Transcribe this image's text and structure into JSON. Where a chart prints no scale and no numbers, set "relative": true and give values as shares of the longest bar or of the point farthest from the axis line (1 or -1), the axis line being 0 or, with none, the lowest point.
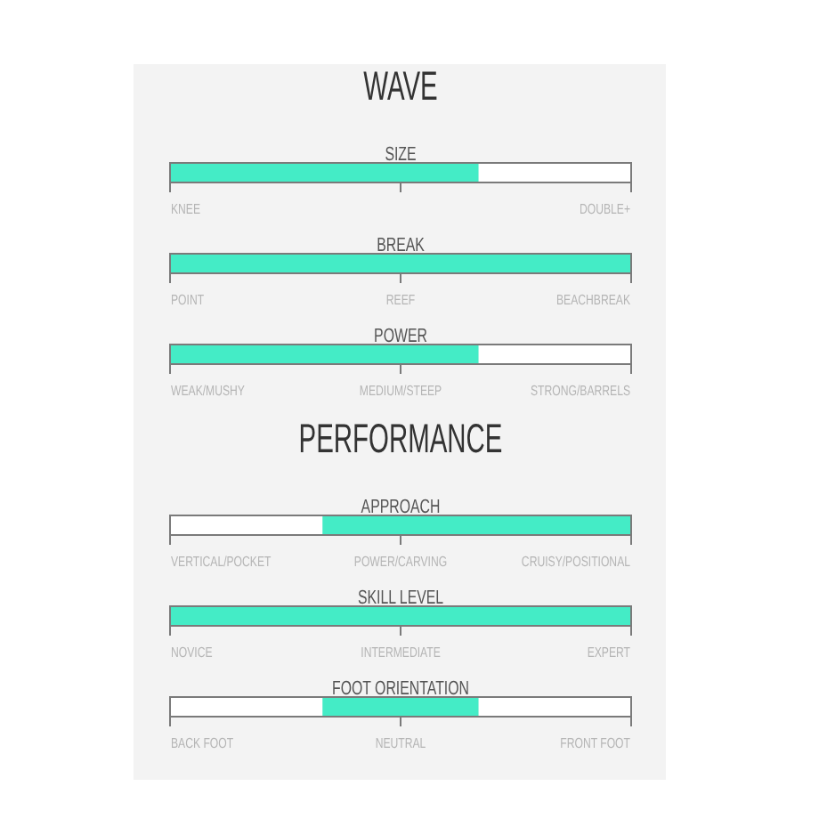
{
  "chart_data": [
    {
      "type": "other",
      "title": "WAVE"
    },
    {
      "type": "bar",
      "orientation": "horizontal",
      "relative": true,
      "stacked": true,
      "title": "SIZE",
      "categories": [
        null
      ],
      "series": [
        {
          "color": "#44ecc6",
          "values": [
            0.67
          ]
        },
        {
          "color": "#ffffff",
          "values": [
            0.33
          ]
        }
      ],
      "annotations": [
        "KNEE",
        "DOUBLE+"
      ]
    },
    {
      "type": "bar",
      "orientation": "horizontal",
      "relative": true,
      "stacked": true,
      "title": "BREAK",
      "categories": [
        null
      ],
      "series": [
        {
          "color": "#44ecc6",
          "values": [
            1
          ]
        }
      ],
      "annotations": [
        "POINT",
        "REEF",
        "BEACHBREAK"
      ]
    },
    {
      "type": "bar",
      "orientation": "horizontal",
      "relative": true,
      "stacked": true,
      "title": "POWER",
      "categories": [
        null
      ],
      "series": [
        {
          "color": "#44ecc6",
          "values": [
            0.67
          ]
        },
        {
          "color": "#ffffff",
          "values": [
            0.33
          ]
        }
      ],
      "annotations": [
        "WEAK/MUSHY",
        "MEDIUM/STEEP",
        "STRONG/BARRELS"
      ]
    },
    {
      "type": "other",
      "title": "PERFORMANCE"
    },
    {
      "type": "bar",
      "orientation": "horizontal",
      "relative": true,
      "stacked": true,
      "title": "APPROACH",
      "categories": [
        null
      ],
      "series": [
        {
          "color": "#ffffff",
          "values": [
            0.33
          ]
        },
        {
          "color": "#44ecc6",
          "values": [
            0.67
          ]
        }
      ],
      "annotations": [
        "VERTICAL/POCKET",
        "POWER/CARVING",
        "CRUISY/POSITIONAL"
      ]
    },
    {
      "type": "bar",
      "orientation": "horizontal",
      "relative": true,
      "stacked": true,
      "title": "SKILL LEVEL",
      "categories": [
        null
      ],
      "series": [
        {
          "color": "#44ecc6",
          "values": [
            1
          ]
        }
      ],
      "annotations": [
        "NOVICE",
        "INTERMEDIATE",
        "EXPERT"
      ]
    },
    {
      "type": "bar",
      "orientation": "horizontal",
      "relative": true,
      "stacked": true,
      "title": "FOOT ORIENTATION",
      "categories": [
        null
      ],
      "series": [
        {
          "color": "#ffffff",
          "values": [
            0.33
          ]
        },
        {
          "color": "#44ecc6",
          "values": [
            0.34
          ]
        },
        {
          "color": "#ffffff",
          "values": [
            0.33
          ]
        }
      ],
      "annotations": [
        "BACK FOOT",
        "NEUTRAL",
        "FRONT FOOT"
      ]
    }
  ]
}
